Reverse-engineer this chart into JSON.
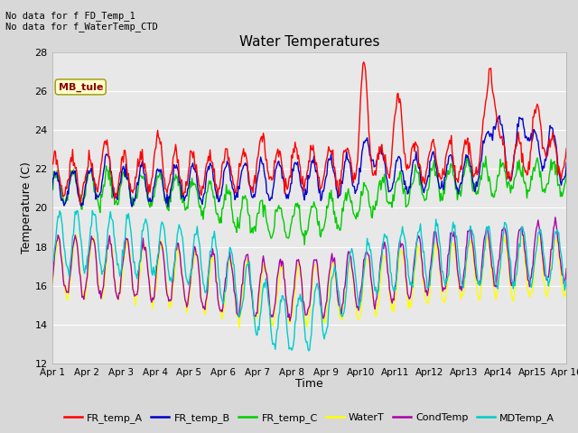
{
  "title": "Water Temperatures",
  "xlabel": "Time",
  "ylabel": "Temperature (C)",
  "xlim": [
    0,
    15
  ],
  "ylim": [
    12,
    28
  ],
  "yticks": [
    12,
    14,
    16,
    18,
    20,
    22,
    24,
    26,
    28
  ],
  "xtick_labels": [
    "Apr 1",
    "Apr 2",
    "Apr 3",
    "Apr 4",
    "Apr 5",
    "Apr 6",
    "Apr 7",
    "Apr 8",
    "Apr 9",
    "Apr10",
    "Apr11",
    "Apr12",
    "Apr13",
    "Apr14",
    "Apr15",
    "Apr 16"
  ],
  "xtick_positions": [
    0,
    1,
    2,
    3,
    4,
    5,
    6,
    7,
    8,
    9,
    10,
    11,
    12,
    13,
    14,
    15
  ],
  "annotations": [
    "No data for f FD_Temp_1",
    "No data for f_WaterTemp_CTD"
  ],
  "box_label": "MB_tule",
  "legend_entries": [
    "FR_temp_A",
    "FR_temp_B",
    "FR_temp_C",
    "WaterT",
    "CondTemp",
    "MDTemp_A"
  ],
  "legend_colors": [
    "#ff0000",
    "#0000cc",
    "#00cc00",
    "#ffff00",
    "#aa00aa",
    "#00cccc"
  ],
  "background_color": "#e8e8e8",
  "grid_color": "#ffffff",
  "line_width": 1.0,
  "figsize": [
    6.4,
    4.8
  ],
  "dpi": 100
}
